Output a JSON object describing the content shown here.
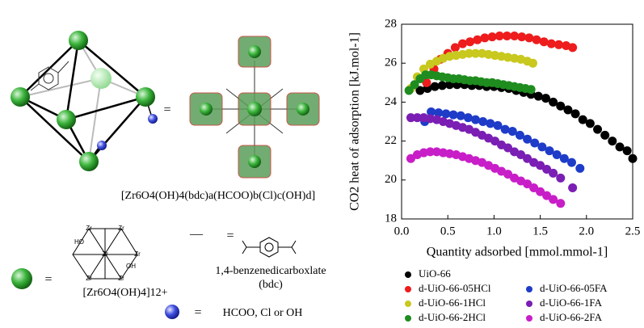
{
  "diagram": {
    "equals_1": "=",
    "formula": "[Zr6O4(OH)4(bdc)a(HCOO)b(Cl)c(OH)d]",
    "equals_2": "=",
    "dash": "—",
    "equals_3": "=",
    "linker_name": "1,4-benzenedicarboxlate",
    "linker_abbrev": "(bdc)",
    "cluster_formula": "[Zr6O4(OH)4]12+",
    "equals_4": "=",
    "ligand_text": "HCOO, Cl or OH",
    "cluster_labels": [
      "Zr",
      "Zr",
      "Zr",
      "Zr",
      "Zr",
      "Zr",
      "HO",
      "OH"
    ]
  },
  "chart_data": {
    "type": "scatter",
    "xlabel": "Quantity adsorbed [mmol.mmol-1]",
    "ylabel": "CO2 heat of adsorption [kJ.mol-1]",
    "xlim": [
      0,
      2.5
    ],
    "xticks": [
      {
        "value": 0,
        "label": "0.0"
      },
      0.5,
      {
        "value": 1,
        "label": "1.0"
      },
      1.5,
      {
        "value": 2,
        "label": "2.0"
      },
      2.5
    ],
    "ylim": [
      18,
      28
    ],
    "yticks": [
      18,
      20,
      22,
      24,
      26,
      28
    ],
    "legend": "bottom",
    "series": [
      {
        "name": "UiO-66",
        "color": "#000000",
        "x": [
          0.2,
          0.28,
          0.36,
          0.44,
          0.52,
          0.6,
          0.68,
          0.76,
          0.84,
          0.92,
          1.0,
          1.08,
          1.16,
          1.24,
          1.32,
          1.4,
          1.48,
          1.56,
          1.64,
          1.72,
          1.8,
          1.88,
          1.96,
          2.04,
          2.12,
          2.2,
          2.28,
          2.36,
          2.44,
          2.5
        ],
        "values": [
          24.6,
          24.7,
          24.8,
          24.85,
          24.9,
          24.9,
          24.9,
          24.85,
          24.85,
          24.8,
          24.8,
          24.75,
          24.7,
          24.6,
          24.5,
          24.4,
          24.3,
          24.2,
          24.0,
          23.8,
          23.6,
          23.4,
          23.1,
          22.9,
          22.6,
          22.3,
          22.0,
          21.7,
          21.5,
          21.1
        ]
      },
      {
        "name": "d-UiO-66-05HCl",
        "color": "#ee1c1c",
        "x": [
          0.27,
          0.35,
          0.42,
          0.5,
          0.58,
          0.66,
          0.74,
          0.82,
          0.9,
          0.98,
          1.06,
          1.14,
          1.22,
          1.3,
          1.38,
          1.46,
          1.54,
          1.62,
          1.7,
          1.78,
          1.85
        ],
        "values": [
          25.0,
          25.7,
          26.2,
          26.5,
          26.8,
          27.0,
          27.1,
          27.2,
          27.3,
          27.35,
          27.4,
          27.4,
          27.4,
          27.35,
          27.3,
          27.2,
          27.1,
          27.0,
          26.95,
          26.9,
          26.8
        ]
      },
      {
        "name": "d-UiO-66-1HCl",
        "color": "#c8c81e",
        "x": [
          0.1,
          0.17,
          0.24,
          0.31,
          0.38,
          0.45,
          0.52,
          0.59,
          0.66,
          0.73,
          0.8,
          0.87,
          0.94,
          1.01,
          1.08,
          1.15,
          1.22,
          1.29,
          1.36,
          1.42
        ],
        "values": [
          24.7,
          25.3,
          25.7,
          25.95,
          26.1,
          26.25,
          26.35,
          26.4,
          26.45,
          26.5,
          26.5,
          26.5,
          26.45,
          26.4,
          26.35,
          26.3,
          26.25,
          26.2,
          26.1,
          26.0
        ]
      },
      {
        "name": "d-UiO-66-2HCl",
        "color": "#1e8c1e",
        "x": [
          0.08,
          0.14,
          0.2,
          0.26,
          0.32,
          0.38,
          0.44,
          0.5,
          0.56,
          0.62,
          0.68,
          0.74,
          0.8,
          0.86,
          0.92,
          0.98,
          1.04,
          1.1,
          1.16,
          1.22,
          1.28,
          1.34,
          1.4
        ],
        "values": [
          24.6,
          24.9,
          25.2,
          25.4,
          25.4,
          25.35,
          25.3,
          25.25,
          25.2,
          25.2,
          25.15,
          25.1,
          25.1,
          25.05,
          25.0,
          25.0,
          24.95,
          24.9,
          24.85,
          24.8,
          24.75,
          24.7,
          24.65
        ]
      },
      {
        "name": "d-UiO-66-05FA",
        "color": "#1e3cc8",
        "x": [
          0.25,
          0.32,
          0.4,
          0.48,
          0.56,
          0.64,
          0.72,
          0.8,
          0.88,
          0.96,
          1.04,
          1.12,
          1.2,
          1.28,
          1.36,
          1.44,
          1.52,
          1.6,
          1.68,
          1.76,
          1.84,
          1.93
        ],
        "values": [
          23.0,
          23.5,
          23.45,
          23.4,
          23.35,
          23.3,
          23.2,
          23.1,
          23.0,
          22.9,
          22.8,
          22.6,
          22.5,
          22.3,
          22.1,
          21.9,
          21.7,
          21.5,
          21.3,
          21.1,
          20.9,
          20.6
        ]
      },
      {
        "name": "d-UiO-66-1FA",
        "color": "#7a1eb4",
        "x": [
          0.1,
          0.17,
          0.24,
          0.31,
          0.38,
          0.45,
          0.52,
          0.59,
          0.66,
          0.73,
          0.8,
          0.87,
          0.94,
          1.01,
          1.08,
          1.15,
          1.22,
          1.29,
          1.36,
          1.43,
          1.5,
          1.57,
          1.64,
          1.72,
          1.85
        ],
        "values": [
          23.2,
          23.2,
          23.2,
          23.15,
          23.1,
          23.0,
          22.9,
          22.8,
          22.7,
          22.6,
          22.45,
          22.3,
          22.15,
          22.0,
          21.8,
          21.65,
          21.45,
          21.3,
          21.1,
          20.9,
          20.75,
          20.55,
          20.35,
          20.1,
          19.6
        ]
      },
      {
        "name": "d-UiO-66-2FA",
        "color": "#c81ec8",
        "x": [
          0.1,
          0.17,
          0.24,
          0.31,
          0.38,
          0.45,
          0.52,
          0.59,
          0.66,
          0.73,
          0.8,
          0.87,
          0.94,
          1.01,
          1.08,
          1.15,
          1.22,
          1.29,
          1.36,
          1.43,
          1.5,
          1.57,
          1.64,
          1.72
        ],
        "values": [
          21.1,
          21.3,
          21.4,
          21.45,
          21.45,
          21.4,
          21.35,
          21.3,
          21.2,
          21.1,
          21.0,
          20.9,
          20.75,
          20.6,
          20.45,
          20.3,
          20.1,
          19.95,
          19.8,
          19.6,
          19.4,
          19.2,
          19.0,
          18.8
        ]
      }
    ]
  }
}
